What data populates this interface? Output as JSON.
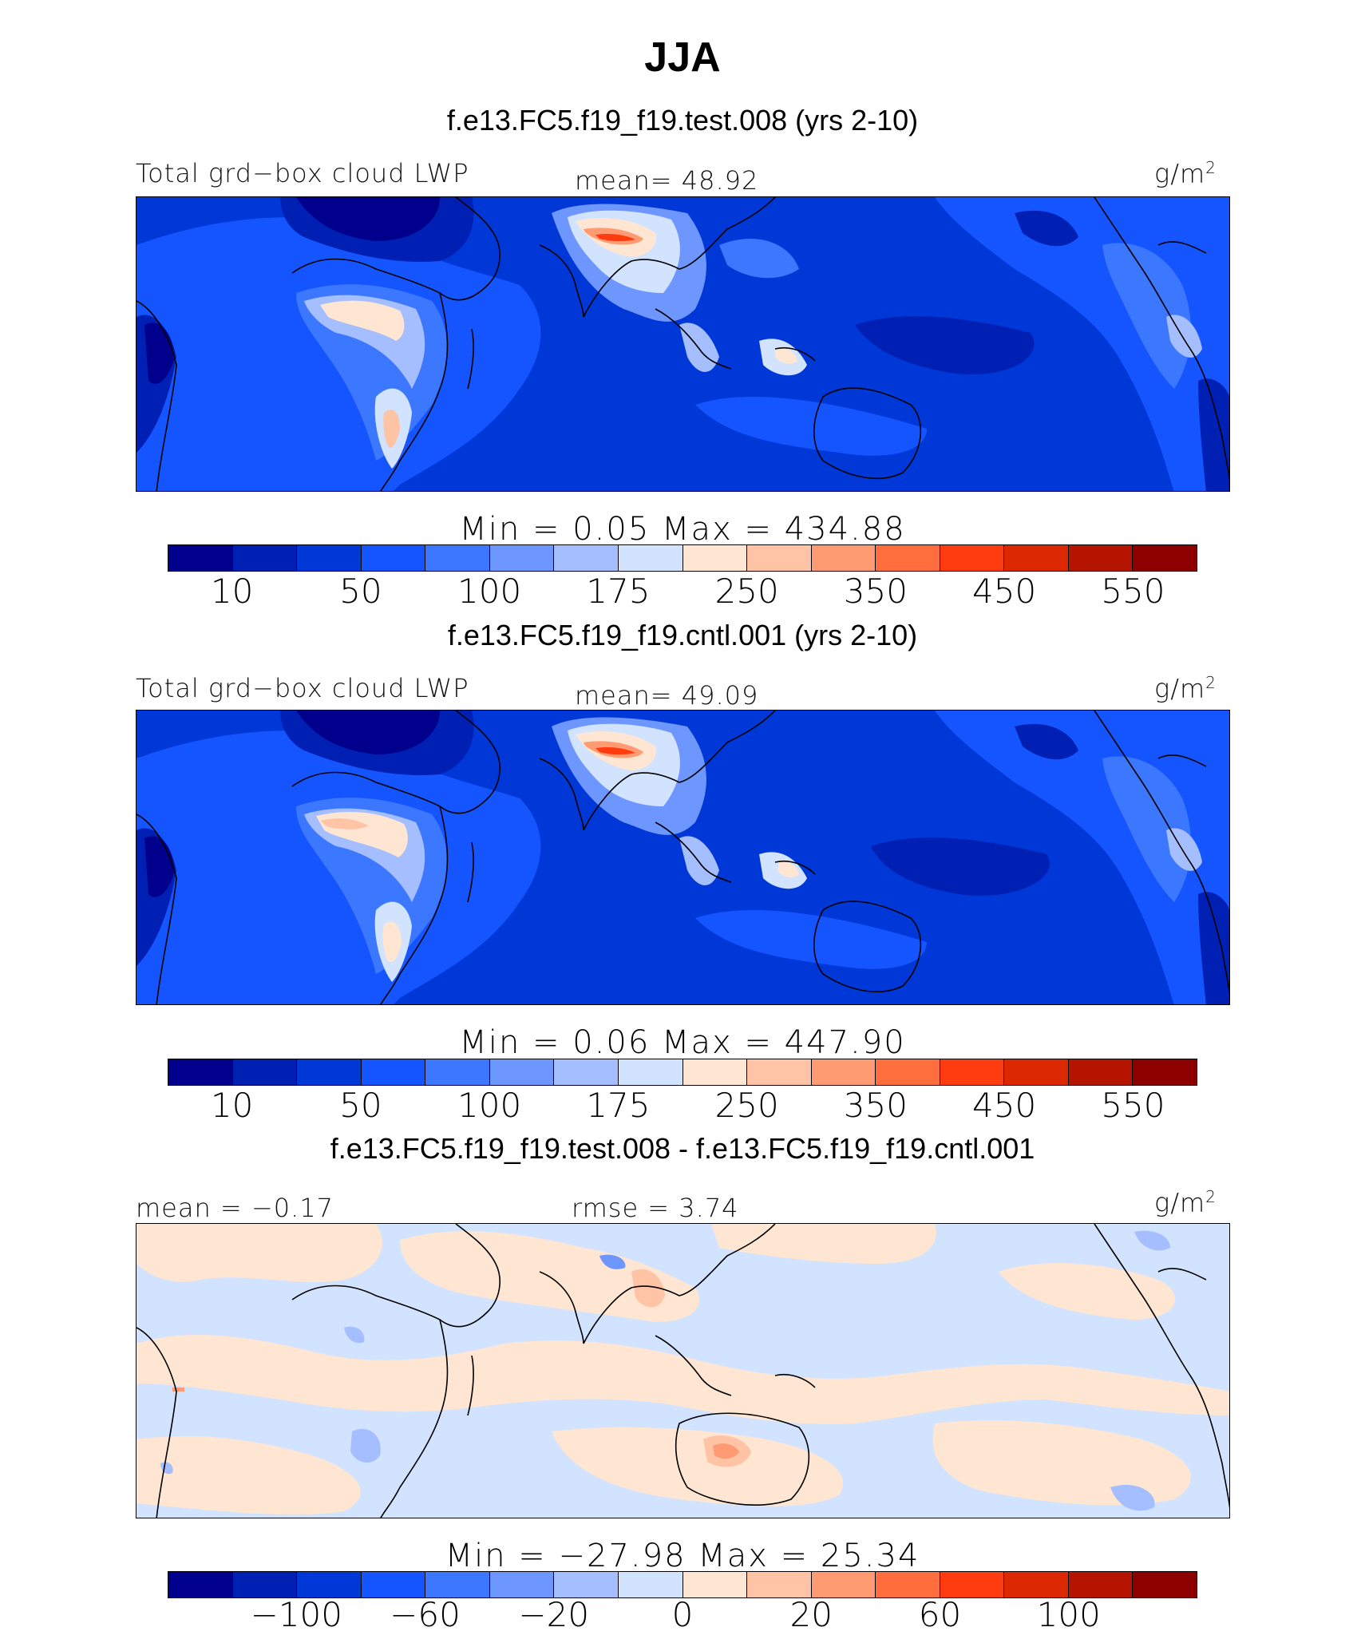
{
  "title": "JJA",
  "colors": {
    "levels13": [
      "#00008c",
      "#0020b4",
      "#0037d7",
      "#1455ff",
      "#3c78ff",
      "#6e96ff",
      "#a5beff",
      "#d2e3ff",
      "#ffe6d2",
      "#ffc3a5",
      "#ff9b73",
      "#ff6e3c",
      "#ff3c0f",
      "#dc2800",
      "#b41400",
      "#8c0000"
    ]
  },
  "panels": [
    {
      "case_title": "f.e13.FC5.f19_f19.test.008 (yrs 2-10)",
      "var_label": "Total grd−box cloud LWP",
      "stat_label": "mean=  48.92",
      "units": "g/m",
      "units_sup": "2",
      "minmax": "Min  =    0.05  Max  =  434.88",
      "colorbar_ticks": [
        "10",
        "50",
        "100",
        "175",
        "250",
        "350",
        "450",
        "550"
      ]
    },
    {
      "case_title": "f.e13.FC5.f19_f19.cntl.001 (yrs 2-10)",
      "var_label": "Total grd−box cloud LWP",
      "stat_label": "mean=  49.09",
      "units": "g/m",
      "units_sup": "2",
      "minmax": "Min  =    0.06  Max  =  447.90",
      "colorbar_ticks": [
        "10",
        "50",
        "100",
        "175",
        "250",
        "350",
        "450",
        "550"
      ]
    },
    {
      "case_title": "f.e13.FC5.f19_f19.test.008 - f.e13.FC5.f19_f19.cntl.001",
      "var_label": "mean =  −0.17",
      "stat_label": "rmse =    3.74",
      "units": "g/m",
      "units_sup": "2",
      "minmax": "Min  = −27.98  Max  =   25.34",
      "colorbar_ticks": [
        "−100",
        "−60",
        "−20",
        "0",
        "20",
        "60",
        "100"
      ]
    }
  ],
  "chart_data": [
    {
      "type": "heatmap",
      "title": "f.e13.FC5.f19_f19.test.008 (yrs 2-10)",
      "variable": "Total grd-box cloud LWP",
      "units": "g/m2",
      "mean": 48.92,
      "min": 0.05,
      "max": 434.88,
      "contour_levels": [
        10,
        25,
        50,
        75,
        100,
        125,
        175,
        200,
        250,
        300,
        350,
        400,
        450,
        500,
        550
      ]
    },
    {
      "type": "heatmap",
      "title": "f.e13.FC5.f19_f19.cntl.001 (yrs 2-10)",
      "variable": "Total grd-box cloud LWP",
      "units": "g/m2",
      "mean": 49.09,
      "min": 0.06,
      "max": 447.9,
      "contour_levels": [
        10,
        25,
        50,
        75,
        100,
        125,
        175,
        200,
        250,
        300,
        350,
        400,
        450,
        500,
        550
      ]
    },
    {
      "type": "heatmap",
      "title": "f.e13.FC5.f19_f19.test.008 - f.e13.FC5.f19_f19.cntl.001",
      "units": "g/m2",
      "mean": -0.17,
      "rmse": 3.74,
      "min": -27.98,
      "max": 25.34,
      "contour_levels": [
        -100,
        -80,
        -60,
        -40,
        -20,
        -10,
        0,
        10,
        20,
        40,
        60,
        80,
        100
      ]
    }
  ]
}
